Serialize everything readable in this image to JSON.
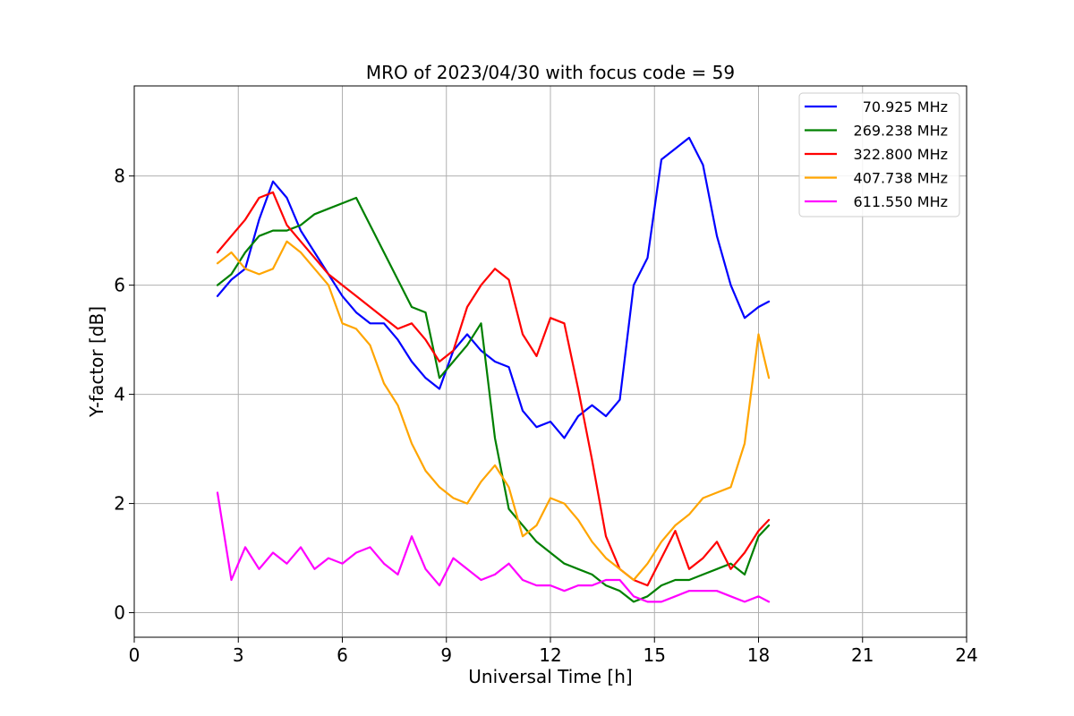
{
  "chart_data": {
    "type": "line",
    "title": "MRO of 2023/04/30 with focus code = 59",
    "xlabel": "Universal Time [h]",
    "ylabel": "Y-factor [dB]",
    "xlim": [
      0,
      24
    ],
    "ylim": [
      -0.45,
      9.65
    ],
    "xticks": [
      0,
      3,
      6,
      9,
      12,
      15,
      18,
      21,
      24
    ],
    "yticks": [
      0,
      2,
      4,
      6,
      8
    ],
    "grid": true,
    "legend_position": "top-right",
    "series": [
      {
        "name": "70.925 MHz",
        "color": "#0000ff",
        "x": [
          2.4,
          2.8,
          3.2,
          3.6,
          4.0,
          4.4,
          4.8,
          5.2,
          5.6,
          6.0,
          6.4,
          6.8,
          7.2,
          7.6,
          8.0,
          8.4,
          8.8,
          9.2,
          9.6,
          10.0,
          10.4,
          10.8,
          11.2,
          11.6,
          12.0,
          12.4,
          12.8,
          13.2,
          13.6,
          14.0,
          14.4,
          14.8,
          15.2,
          15.6,
          16.0,
          16.4,
          16.8,
          17.2,
          17.6,
          18.0,
          18.3
        ],
        "values": [
          5.8,
          6.1,
          6.3,
          7.2,
          7.9,
          7.6,
          7.0,
          6.6,
          6.2,
          5.8,
          5.5,
          5.3,
          5.3,
          5.0,
          4.6,
          4.3,
          4.1,
          4.8,
          5.1,
          4.8,
          4.6,
          4.5,
          3.7,
          3.4,
          3.5,
          3.2,
          3.6,
          3.8,
          3.6,
          3.9,
          6.0,
          6.5,
          8.3,
          8.5,
          8.7,
          8.2,
          6.9,
          6.0,
          5.4,
          5.6,
          5.7
        ]
      },
      {
        "name": "269.238 MHz",
        "color": "#008000",
        "x": [
          2.4,
          2.8,
          3.2,
          3.6,
          4.0,
          4.4,
          4.8,
          5.2,
          5.6,
          6.0,
          6.4,
          6.8,
          7.2,
          7.6,
          8.0,
          8.4,
          8.8,
          9.2,
          9.6,
          10.0,
          10.4,
          10.8,
          11.2,
          11.6,
          12.0,
          12.4,
          12.8,
          13.2,
          13.6,
          14.0,
          14.4,
          14.8,
          15.2,
          15.6,
          16.0,
          16.4,
          16.8,
          17.2,
          17.6,
          18.0,
          18.3
        ],
        "values": [
          6.0,
          6.2,
          6.6,
          6.9,
          7.0,
          7.0,
          7.1,
          7.3,
          7.4,
          7.5,
          7.6,
          7.1,
          6.6,
          6.1,
          5.6,
          5.5,
          4.3,
          4.6,
          4.9,
          5.3,
          3.2,
          1.9,
          1.6,
          1.3,
          1.1,
          0.9,
          0.8,
          0.7,
          0.5,
          0.4,
          0.2,
          0.3,
          0.5,
          0.6,
          0.6,
          0.7,
          0.8,
          0.9,
          0.7,
          1.4,
          1.6
        ]
      },
      {
        "name": "322.800 MHz",
        "color": "#ff0000",
        "x": [
          2.4,
          2.8,
          3.2,
          3.6,
          4.0,
          4.4,
          4.8,
          5.2,
          5.6,
          6.0,
          6.4,
          6.8,
          7.2,
          7.6,
          8.0,
          8.4,
          8.8,
          9.2,
          9.6,
          10.0,
          10.4,
          10.8,
          11.2,
          11.6,
          12.0,
          12.4,
          12.8,
          13.2,
          13.6,
          14.0,
          14.4,
          14.8,
          15.2,
          15.6,
          16.0,
          16.4,
          16.8,
          17.2,
          17.6,
          18.0,
          18.3
        ],
        "values": [
          6.6,
          6.9,
          7.2,
          7.6,
          7.7,
          7.1,
          6.8,
          6.5,
          6.2,
          6.0,
          5.8,
          5.6,
          5.4,
          5.2,
          5.3,
          5.0,
          4.6,
          4.8,
          5.6,
          6.0,
          6.3,
          6.1,
          5.1,
          4.7,
          5.4,
          5.3,
          4.1,
          2.8,
          1.4,
          0.8,
          0.6,
          0.5,
          1.0,
          1.5,
          0.8,
          1.0,
          1.3,
          0.8,
          1.1,
          1.5,
          1.7
        ]
      },
      {
        "name": "407.738 MHz",
        "color": "#ffa500",
        "x": [
          2.4,
          2.8,
          3.2,
          3.6,
          4.0,
          4.4,
          4.8,
          5.2,
          5.6,
          6.0,
          6.4,
          6.8,
          7.2,
          7.6,
          8.0,
          8.4,
          8.8,
          9.2,
          9.6,
          10.0,
          10.4,
          10.8,
          11.2,
          11.6,
          12.0,
          12.4,
          12.8,
          13.2,
          13.6,
          14.0,
          14.4,
          14.8,
          15.2,
          15.6,
          16.0,
          16.4,
          16.8,
          17.2,
          17.6,
          18.0,
          18.3
        ],
        "values": [
          6.4,
          6.6,
          6.3,
          6.2,
          6.3,
          6.8,
          6.6,
          6.3,
          6.0,
          5.3,
          5.2,
          4.9,
          4.2,
          3.8,
          3.1,
          2.6,
          2.3,
          2.1,
          2.0,
          2.4,
          2.7,
          2.3,
          1.4,
          1.6,
          2.1,
          2.0,
          1.7,
          1.3,
          1.0,
          0.8,
          0.6,
          0.9,
          1.3,
          1.6,
          1.8,
          2.1,
          2.2,
          2.3,
          3.1,
          5.1,
          4.3
        ]
      },
      {
        "name": "611.550 MHz",
        "color": "#ff00ff",
        "x": [
          2.4,
          2.8,
          3.2,
          3.6,
          4.0,
          4.4,
          4.8,
          5.2,
          5.6,
          6.0,
          6.4,
          6.8,
          7.2,
          7.6,
          8.0,
          8.4,
          8.8,
          9.2,
          9.6,
          10.0,
          10.4,
          10.8,
          11.2,
          11.6,
          12.0,
          12.4,
          12.8,
          13.2,
          13.6,
          14.0,
          14.4,
          14.8,
          15.2,
          15.6,
          16.0,
          16.4,
          16.8,
          17.2,
          17.6,
          18.0,
          18.3
        ],
        "values": [
          2.2,
          0.6,
          1.2,
          0.8,
          1.1,
          0.9,
          1.2,
          0.8,
          1.0,
          0.9,
          1.1,
          1.2,
          0.9,
          0.7,
          1.4,
          0.8,
          0.5,
          1.0,
          0.8,
          0.6,
          0.7,
          0.9,
          0.6,
          0.5,
          0.5,
          0.4,
          0.5,
          0.5,
          0.6,
          0.6,
          0.3,
          0.2,
          0.2,
          0.3,
          0.4,
          0.4,
          0.4,
          0.3,
          0.2,
          0.3,
          0.2
        ]
      }
    ]
  }
}
